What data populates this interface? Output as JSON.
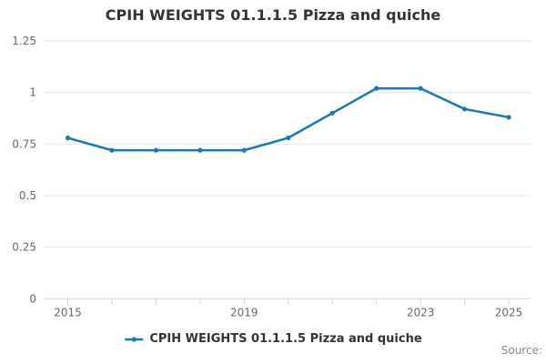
{
  "header": {
    "title": "CPIH WEIGHTS 01.1.1.5 Pizza and quiche"
  },
  "chart_data": {
    "type": "line",
    "title": "CPIH WEIGHTS 01.1.1.5 Pizza and quiche",
    "x": [
      "2015",
      "2016",
      "2017",
      "2018",
      "2019",
      "2020",
      "2021",
      "2022",
      "2023",
      "2024",
      "2025"
    ],
    "series": [
      {
        "name": "CPIH WEIGHTS 01.1.1.5 Pizza and quiche",
        "color": "#1a78b8",
        "values": [
          0.78,
          0.72,
          0.72,
          0.72,
          0.72,
          0.78,
          0.9,
          1.02,
          1.02,
          0.92,
          0.88
        ]
      }
    ],
    "xlabel": "",
    "ylabel": "",
    "ylim": [
      0,
      1.25
    ],
    "yticks": [
      {
        "value": 0,
        "label": "0"
      },
      {
        "value": 0.25,
        "label": "0.25"
      },
      {
        "value": 0.5,
        "label": "0.5"
      },
      {
        "value": 0.75,
        "label": "0.75"
      },
      {
        "value": 1,
        "label": "1"
      },
      {
        "value": 1.25,
        "label": "1.25"
      }
    ],
    "xticks_labeled": [
      "2015",
      "2019",
      "2023",
      "2025"
    ],
    "grid": true,
    "legend_position": "bottom"
  },
  "legend": {
    "label": "CPIH WEIGHTS 01.1.1.5 Pizza and quiche"
  },
  "footer": {
    "source_label": "Source:"
  },
  "colors": {
    "line": "#1a78b8",
    "grid": "#e6e6e6",
    "axis": "#c9d4e0",
    "title_text": "#333333",
    "axis_label_text": "#666666",
    "legend_text": "#333333",
    "source_text": "#888888",
    "background": "#ffffff"
  }
}
